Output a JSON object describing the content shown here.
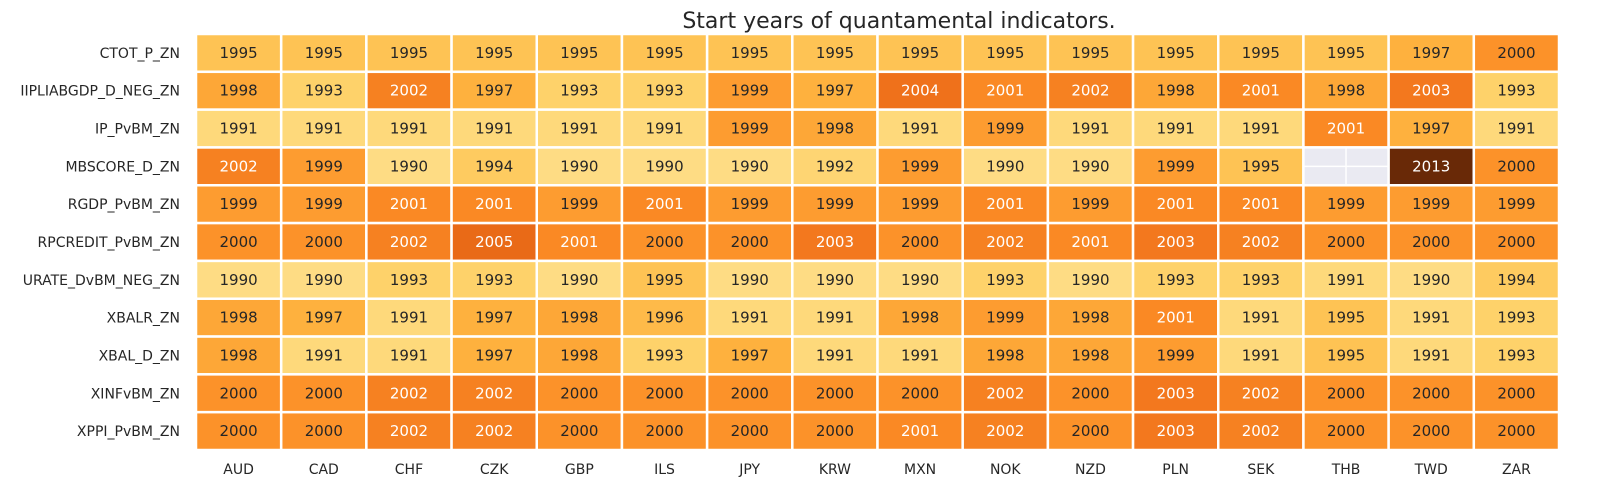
{
  "chart_data": {
    "type": "heatmap",
    "title": "Start years of quantamental indicators.",
    "xlabel": "",
    "ylabel": "",
    "columns": [
      "AUD",
      "CAD",
      "CHF",
      "CZK",
      "GBP",
      "ILS",
      "JPY",
      "KRW",
      "MXN",
      "NOK",
      "NZD",
      "PLN",
      "SEK",
      "THB",
      "TWD",
      "ZAR"
    ],
    "rows": [
      "CTOT_P_ZN",
      "IIPLIABGDP_D_NEG_ZN",
      "IP_PvBM_ZN",
      "MBSCORE_D_ZN",
      "RGDP_PvBM_ZN",
      "RPCREDIT_PvBM_ZN",
      "URATE_DvBM_NEG_ZN",
      "XBALR_ZN",
      "XBAL_D_ZN",
      "XINFvBM_ZN",
      "XPPI_PvBM_ZN"
    ],
    "values": [
      [
        1995,
        1995,
        1995,
        1995,
        1995,
        1995,
        1995,
        1995,
        1995,
        1995,
        1995,
        1995,
        1995,
        1995,
        1997,
        2000
      ],
      [
        1998,
        1993,
        2002,
        1997,
        1993,
        1993,
        1999,
        1997,
        2004,
        2001,
        2002,
        1998,
        2001,
        1998,
        2003,
        1993
      ],
      [
        1991,
        1991,
        1991,
        1991,
        1991,
        1991,
        1999,
        1998,
        1991,
        1999,
        1991,
        1991,
        1991,
        2001,
        1997,
        1991
      ],
      [
        2002,
        1999,
        1990,
        1994,
        1990,
        1990,
        1990,
        1992,
        1999,
        1990,
        1990,
        1999,
        1995,
        null,
        2013,
        2000
      ],
      [
        1999,
        1999,
        2001,
        2001,
        1999,
        2001,
        1999,
        1999,
        1999,
        2001,
        1999,
        2001,
        2001,
        1999,
        1999,
        1999
      ],
      [
        2000,
        2000,
        2002,
        2005,
        2001,
        2000,
        2000,
        2003,
        2000,
        2002,
        2001,
        2003,
        2002,
        2000,
        2000,
        2000
      ],
      [
        1990,
        1990,
        1993,
        1993,
        1990,
        1995,
        1990,
        1990,
        1990,
        1993,
        1990,
        1993,
        1993,
        1991,
        1990,
        1994
      ],
      [
        1998,
        1997,
        1991,
        1997,
        1998,
        1996,
        1991,
        1991,
        1998,
        1999,
        1998,
        2001,
        1991,
        1995,
        1991,
        1993
      ],
      [
        1998,
        1991,
        1991,
        1997,
        1998,
        1993,
        1997,
        1991,
        1991,
        1998,
        1998,
        1999,
        1991,
        1995,
        1991,
        1993
      ],
      [
        2000,
        2000,
        2002,
        2002,
        2000,
        2000,
        2000,
        2000,
        2000,
        2002,
        2000,
        2003,
        2002,
        2000,
        2000,
        2000
      ],
      [
        2000,
        2000,
        2002,
        2002,
        2000,
        2000,
        2000,
        2000,
        2001,
        2002,
        2000,
        2003,
        2002,
        2000,
        2000,
        2000
      ]
    ],
    "colormap": "YlOrBr",
    "missing_color": "#eaeaf2",
    "grid": false,
    "legend": "none"
  }
}
